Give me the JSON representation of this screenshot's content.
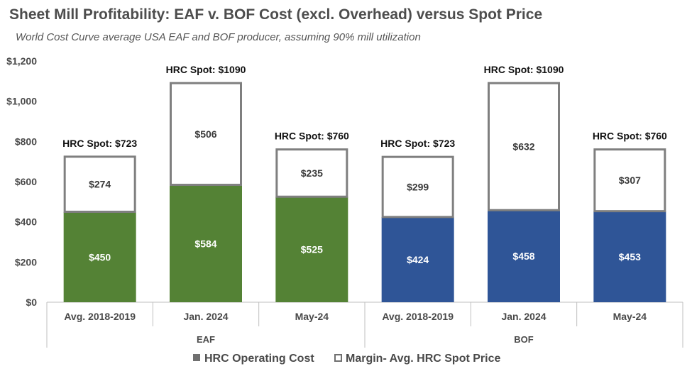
{
  "header": {
    "title": "Sheet Mill Profitability: EAF v. BOF Cost (excl. Overhead) versus Spot Price",
    "subtitle": "World Cost Curve average USA EAF and BOF producer, assuming 90% mill utilization"
  },
  "chart_data": {
    "type": "bar",
    "stacked": true,
    "ylim": [
      0,
      1200
    ],
    "y_ticks": [
      "$0",
      "$200",
      "$400",
      "$600",
      "$800",
      "$1,000",
      "$1,200"
    ],
    "groups": [
      "EAF",
      "BOF"
    ],
    "categories": [
      "Avg. 2018-2019",
      "Jan. 2024",
      "May-24",
      "Avg. 2018-2019",
      "Jan. 2024",
      "May-24"
    ],
    "category_group": [
      "EAF",
      "EAF",
      "EAF",
      "BOF",
      "BOF",
      "BOF"
    ],
    "series": [
      {
        "name": "HRC Operating Cost",
        "values": [
          450,
          584,
          525,
          424,
          458,
          453
        ],
        "labels": [
          "$450",
          "$584",
          "$525",
          "$424",
          "$458",
          "$453"
        ],
        "colors": [
          "#548235",
          "#548235",
          "#548235",
          "#2f5597",
          "#2f5597",
          "#2f5597"
        ]
      },
      {
        "name": "Margin- Avg. HRC Spot Price",
        "values": [
          274,
          506,
          235,
          299,
          632,
          307
        ],
        "labels": [
          "$274",
          "$506",
          "$235",
          "$299",
          "$632",
          "$307"
        ],
        "fill": "#ffffff",
        "stroke": "#7f7f7f"
      }
    ],
    "spot_labels": [
      "HRC Spot: $723",
      "HRC Spot: $1090",
      "HRC Spot: $760",
      "HRC Spot: $723",
      "HRC Spot: $1090",
      "HRC Spot: $760"
    ],
    "legend": {
      "position": "bottom",
      "items": [
        {
          "label": "HRC Operating Cost",
          "swatch": "#707070",
          "filled": true
        },
        {
          "label": "Margin- Avg. HRC Spot Price",
          "swatch": "#707070",
          "filled": false
        }
      ]
    },
    "grid": false
  }
}
